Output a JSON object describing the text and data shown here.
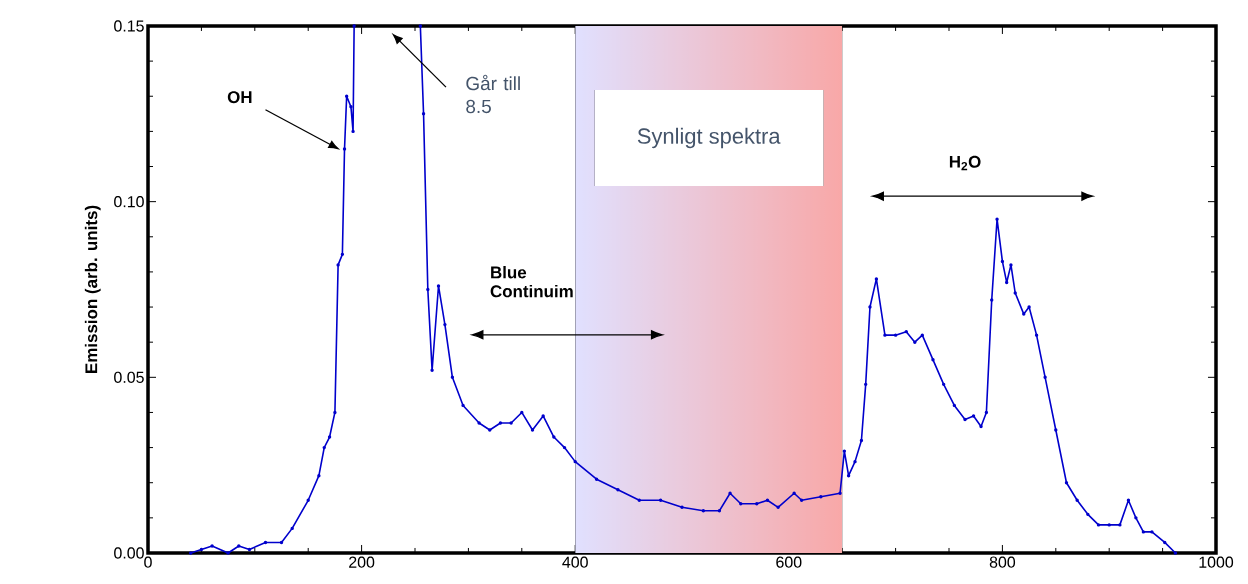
{
  "chart_data": {
    "type": "line",
    "ylabel": "Emission (arb. units)",
    "xlim": [
      0,
      1000
    ],
    "xticks": [
      0,
      200,
      400,
      600,
      800,
      1000
    ],
    "ylim": [
      0,
      0.15
    ],
    "yticks": [
      {
        "value": 0,
        "label": "0.00"
      },
      {
        "value": 0.05,
        "label": "0.05"
      },
      {
        "value": 0.1,
        "label": "0.10"
      },
      {
        "value": 0.15,
        "label": "0.15"
      }
    ],
    "x": [
      40,
      50,
      60,
      75,
      85,
      95,
      110,
      125,
      135,
      150,
      160,
      165,
      170,
      175,
      178,
      182,
      184,
      186,
      190,
      192,
      193,
      225,
      255,
      258,
      262,
      266,
      272,
      278,
      285,
      295,
      310,
      320,
      330,
      340,
      350,
      360,
      370,
      380,
      390,
      400,
      420,
      440,
      460,
      480,
      500,
      520,
      535,
      545,
      555,
      570,
      580,
      590,
      605,
      612,
      630,
      648,
      652,
      656,
      662,
      668,
      672,
      676,
      682,
      690,
      700,
      710,
      718,
      725,
      735,
      745,
      755,
      765,
      773,
      780,
      785,
      790,
      795,
      800,
      804,
      808,
      812,
      820,
      825,
      832,
      840,
      850,
      860,
      870,
      880,
      890,
      900,
      910,
      918,
      925,
      932,
      940,
      952,
      962
    ],
    "series": [
      {
        "color": "#0000cc",
        "values": [
          0.0,
          0.001,
          0.002,
          0.0,
          0.002,
          0.001,
          0.003,
          0.003,
          0.007,
          0.015,
          0.022,
          0.03,
          0.033,
          0.04,
          0.082,
          0.085,
          0.115,
          0.13,
          0.127,
          0.12,
          0.15,
          null,
          0.15,
          0.125,
          0.075,
          0.052,
          0.076,
          0.065,
          0.05,
          0.042,
          0.037,
          0.035,
          0.037,
          0.037,
          0.04,
          0.035,
          0.039,
          0.033,
          0.03,
          0.026,
          0.021,
          0.018,
          0.015,
          0.015,
          0.013,
          0.012,
          0.012,
          0.017,
          0.014,
          0.014,
          0.015,
          0.013,
          0.017,
          0.015,
          0.016,
          0.017,
          0.029,
          0.022,
          0.026,
          0.032,
          0.048,
          0.07,
          0.078,
          0.062,
          0.062,
          0.063,
          0.06,
          0.062,
          0.055,
          0.048,
          0.042,
          0.038,
          0.039,
          0.036,
          0.04,
          0.072,
          0.095,
          0.083,
          0.077,
          0.082,
          0.074,
          0.068,
          0.07,
          0.062,
          0.05,
          0.035,
          0.02,
          0.015,
          0.011,
          0.008,
          0.008,
          0.008,
          0.015,
          0.01,
          0.006,
          0.006,
          0.003,
          0.0
        ]
      }
    ],
    "marker": "circle",
    "bands": [
      {
        "axis": "x",
        "from": 400,
        "to": 650,
        "label": "Synligt spektra",
        "color": "#f8a8a8"
      }
    ],
    "annotations": [
      "OH",
      "Går till 8.5",
      "Blue Continuim",
      "H$_{2}$O"
    ]
  }
}
